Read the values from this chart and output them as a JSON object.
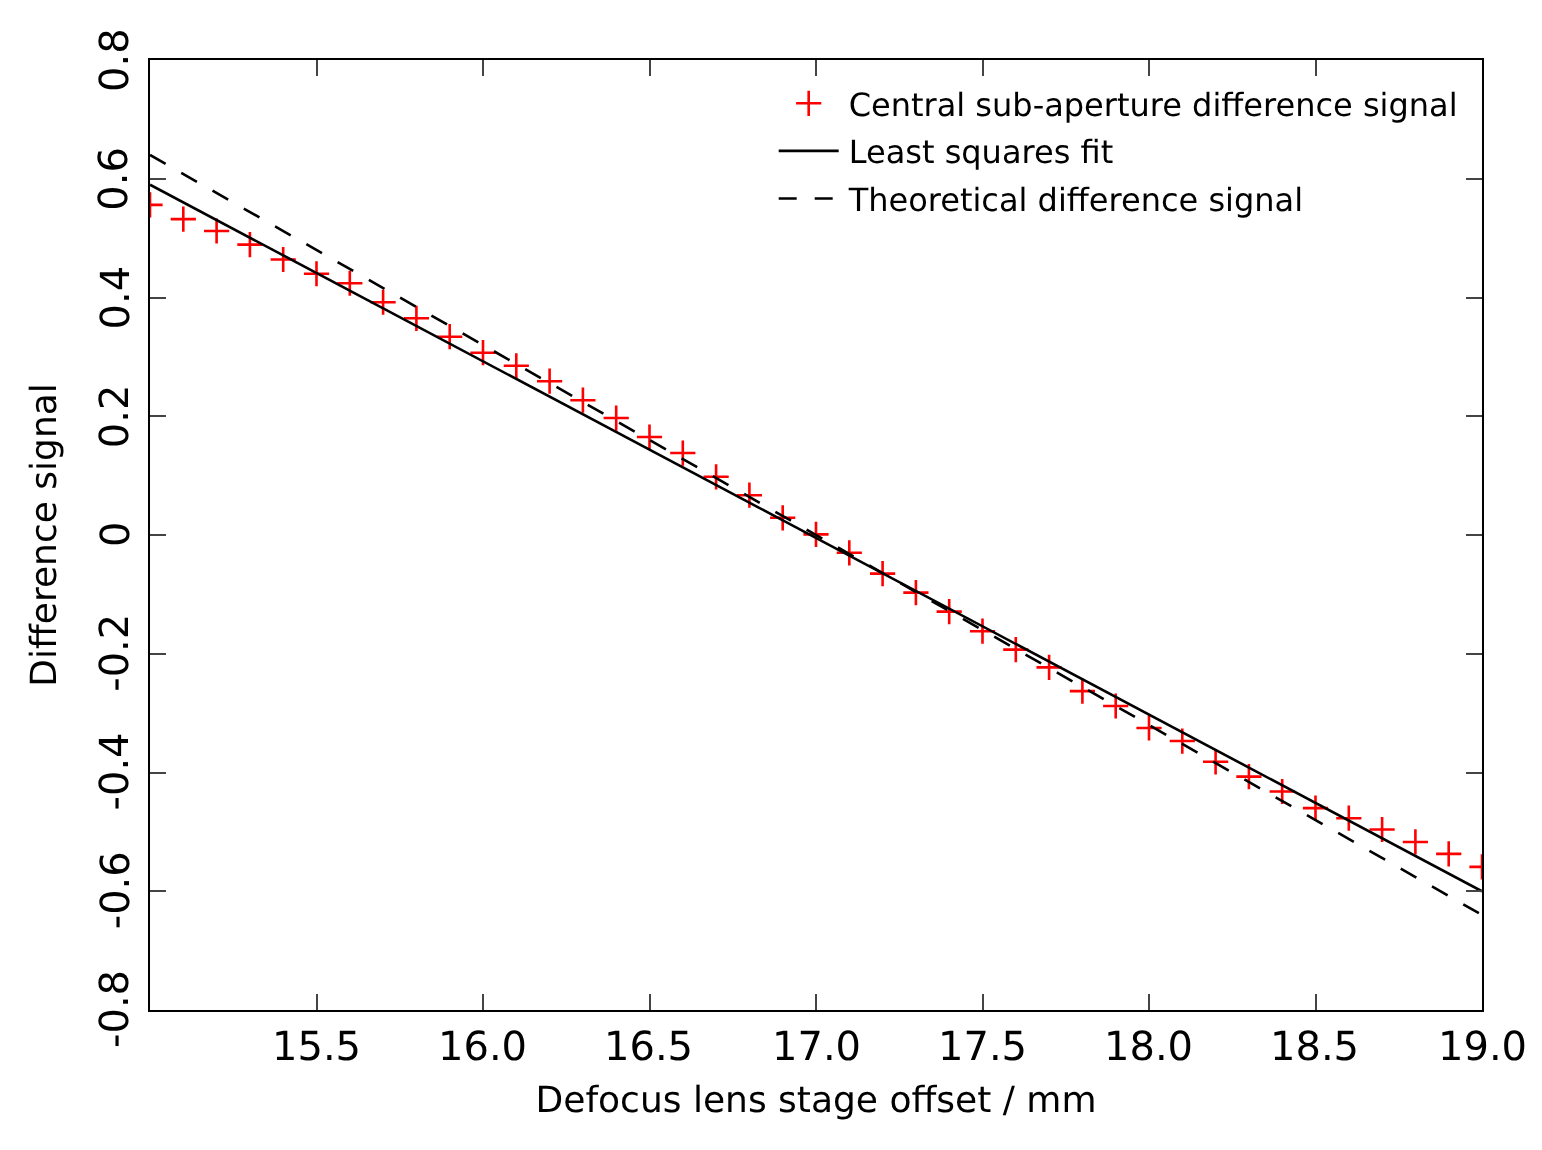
{
  "chart_data": {
    "type": "scatter",
    "xlabel": "Defocus lens stage offset / mm",
    "ylabel": "Difference signal",
    "xlim": [
      15.0,
      19.0
    ],
    "ylim": [
      -0.8,
      0.8
    ],
    "xticks": [
      15.5,
      {
        "value": 16,
        "label": "16.0"
      },
      16.5,
      {
        "value": 17,
        "label": "17.0"
      },
      17.5,
      {
        "value": 18,
        "label": "18.0"
      },
      18.5,
      {
        "value": 19,
        "label": "19.0"
      }
    ],
    "yticks": [
      -0.8,
      -0.6,
      -0.4,
      -0.2,
      0,
      0.2,
      0.4,
      0.6,
      0.8
    ],
    "legend": "top right",
    "series": [
      {
        "name": "Central sub-aperture difference signal",
        "marker": "cross",
        "color": "#ff0000",
        "x": [
          15.0,
          15.1,
          15.2,
          15.3,
          15.4,
          15.5,
          15.6,
          15.7,
          15.8,
          15.9,
          16.0,
          16.1,
          16.2,
          16.3,
          16.4,
          16.5,
          16.6,
          16.7,
          16.8,
          16.9,
          17.0,
          17.1,
          17.2,
          17.3,
          17.4,
          17.5,
          17.6,
          17.7,
          17.8,
          17.9,
          18.0,
          18.1,
          18.2,
          18.3,
          18.4,
          18.5,
          18.6,
          18.7,
          18.8,
          18.9,
          19.0
        ],
        "values": [
          0.556,
          0.532,
          0.512,
          0.489,
          0.464,
          0.44,
          0.424,
          0.392,
          0.365,
          0.334,
          0.307,
          0.285,
          0.259,
          0.227,
          0.197,
          0.165,
          0.138,
          0.098,
          0.067,
          0.029,
          0.001,
          -0.03,
          -0.065,
          -0.097,
          -0.129,
          -0.162,
          -0.193,
          -0.223,
          -0.263,
          -0.288,
          -0.325,
          -0.347,
          -0.382,
          -0.407,
          -0.432,
          -0.46,
          -0.477,
          -0.496,
          -0.517,
          -0.537,
          -0.559
        ]
      },
      {
        "name": "Least squares fit",
        "type": "line",
        "line_style": "solid",
        "color": "#000000",
        "x": [
          15.0,
          19.0
        ],
        "values": [
          0.59,
          -0.6
        ]
      },
      {
        "name": "Theoretical difference signal",
        "type": "line",
        "line_style": "dashed",
        "color": "#000000",
        "x": [
          15.0,
          19.0
        ],
        "values": [
          0.64,
          -0.64
        ]
      }
    ]
  }
}
